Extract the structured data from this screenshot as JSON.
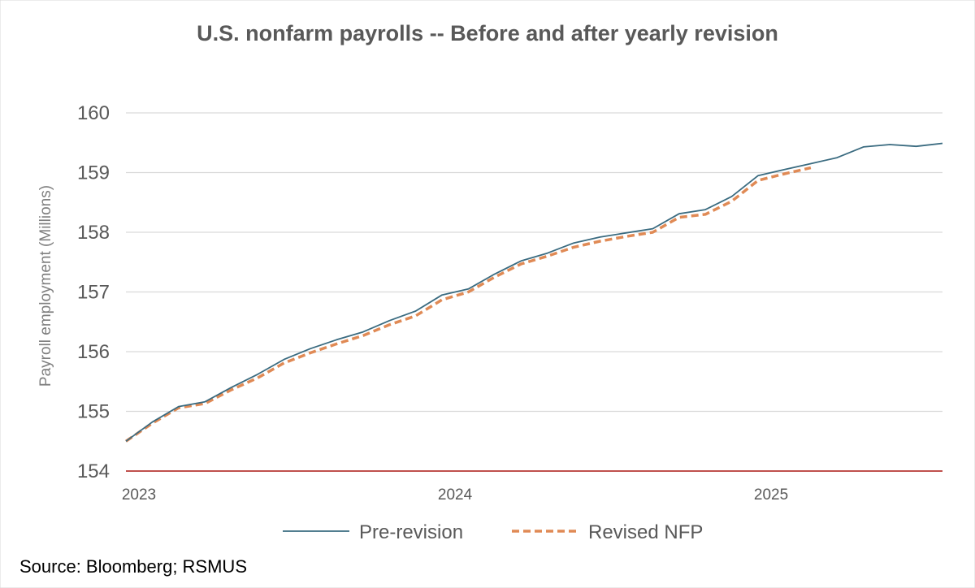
{
  "chart_data": {
    "type": "line",
    "title": "U.S. nonfarm payrolls -- Before and after yearly revision",
    "ylabel": "Payroll employment (Millions)",
    "xlabel": "",
    "ylim": [
      154,
      160
    ],
    "yticks": [
      "154",
      "155",
      "156",
      "157",
      "158",
      "159",
      "160"
    ],
    "xticks": [
      {
        "label": "2023",
        "date": "2023-01"
      },
      {
        "label": "2024",
        "date": "2024-01"
      },
      {
        "label": "2025",
        "date": "2025-01"
      }
    ],
    "x_range": [
      "2023-01",
      "2025-08"
    ],
    "grid": true,
    "legend_position": "bottom",
    "series": [
      {
        "name": "Pre-revision",
        "style": "solid",
        "color": "#3a6b80",
        "x": [
          "2023-01",
          "2023-02",
          "2023-03",
          "2023-04",
          "2023-05",
          "2023-06",
          "2023-07",
          "2023-08",
          "2023-09",
          "2023-10",
          "2023-11",
          "2023-12",
          "2024-01",
          "2024-02",
          "2024-03",
          "2024-04",
          "2024-05",
          "2024-06",
          "2024-07",
          "2024-08",
          "2024-09",
          "2024-10",
          "2024-11",
          "2024-12",
          "2025-01",
          "2025-02",
          "2025-03",
          "2025-04",
          "2025-05",
          "2025-06",
          "2025-07",
          "2025-08"
        ],
        "values": [
          154.5,
          154.82,
          155.08,
          155.16,
          155.4,
          155.62,
          155.87,
          156.05,
          156.2,
          156.33,
          156.52,
          156.68,
          156.95,
          157.05,
          157.3,
          157.52,
          157.65,
          157.82,
          157.92,
          157.99,
          158.06,
          158.31,
          158.38,
          158.6,
          158.95,
          159.05,
          159.15,
          159.25,
          159.43,
          159.47,
          159.44,
          159.49
        ]
      },
      {
        "name": "Revised NFP",
        "style": "dashed",
        "color": "#e08a55",
        "x": [
          "2023-01",
          "2023-02",
          "2023-03",
          "2023-04",
          "2023-05",
          "2023-06",
          "2023-07",
          "2023-08",
          "2023-09",
          "2023-10",
          "2023-11",
          "2023-12",
          "2024-01",
          "2024-02",
          "2024-03",
          "2024-04",
          "2024-05",
          "2024-06",
          "2024-07",
          "2024-08",
          "2024-09",
          "2024-10",
          "2024-11",
          "2024-12",
          "2025-01",
          "2025-02",
          "2025-03"
        ],
        "values": [
          154.5,
          154.8,
          155.06,
          155.13,
          155.36,
          155.56,
          155.81,
          155.98,
          156.13,
          156.27,
          156.45,
          156.6,
          156.87,
          157.0,
          157.25,
          157.47,
          157.6,
          157.75,
          157.85,
          157.93,
          158.0,
          158.25,
          158.3,
          158.52,
          158.87,
          158.98,
          159.08
        ]
      }
    ]
  },
  "axis_line_color": "#c0504d",
  "grid_color": "#d9d9d9",
  "source": "Source: Bloomberg; RSMUS"
}
